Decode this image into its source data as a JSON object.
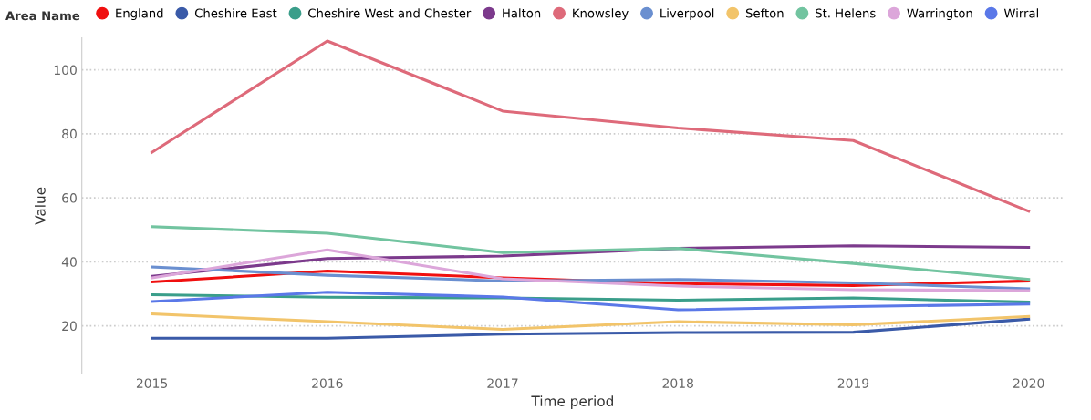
{
  "chart_data": {
    "type": "line",
    "xlabel": "Time period",
    "ylabel": "Value",
    "legend_title": "Area Name",
    "legend": "top",
    "grid": "y",
    "marker": "none",
    "line_style": "solid",
    "x": [
      2015,
      2016,
      2017,
      2018,
      2019,
      2020
    ],
    "xlim": [
      2014.6,
      2020.2
    ],
    "xticks": [
      2015,
      2016,
      2017,
      2018,
      2019,
      2020
    ],
    "ylim": [
      5,
      110
    ],
    "yticks": [
      20,
      40,
      60,
      80,
      100
    ],
    "series": [
      {
        "name": "England",
        "color": "#f00f0f",
        "values": [
          33.7,
          37.1,
          35,
          33.2,
          32.6,
          34
        ]
      },
      {
        "name": "Cheshire East",
        "color": "#3a5aa8",
        "values": [
          16.1,
          16.1,
          17.4,
          17.9,
          18,
          22.1
        ]
      },
      {
        "name": "Cheshire West and Chester",
        "color": "#3a9e8a",
        "values": [
          29.7,
          28.9,
          28.7,
          28,
          28.7,
          27.4
        ]
      },
      {
        "name": "Halton",
        "color": "#7c3a8c",
        "values": [
          35.5,
          41,
          41.8,
          44.2,
          45,
          44.5
        ]
      },
      {
        "name": "Knowsley",
        "color": "#de6a7a",
        "values": [
          74.2,
          109,
          87.1,
          81.8,
          77.9,
          55.8
        ]
      },
      {
        "name": "Liverpool",
        "color": "#6a8fd0",
        "values": [
          38.4,
          35.8,
          34,
          34.5,
          33.4,
          31.6
        ]
      },
      {
        "name": "Sefton",
        "color": "#f2c46a",
        "values": [
          23.7,
          21.3,
          18.9,
          21.3,
          20.3,
          22.9
        ]
      },
      {
        "name": "St. Helens",
        "color": "#72c4a0",
        "values": [
          51,
          48.9,
          42.9,
          44.2,
          39.5,
          34.5
        ]
      },
      {
        "name": "Warrington",
        "color": "#dca6da",
        "values": [
          35,
          43.7,
          34.7,
          32.4,
          31.3,
          31
        ]
      },
      {
        "name": "Wirral",
        "color": "#5a78e8",
        "values": [
          27.6,
          30.5,
          29,
          25,
          26,
          26.8
        ]
      }
    ]
  }
}
